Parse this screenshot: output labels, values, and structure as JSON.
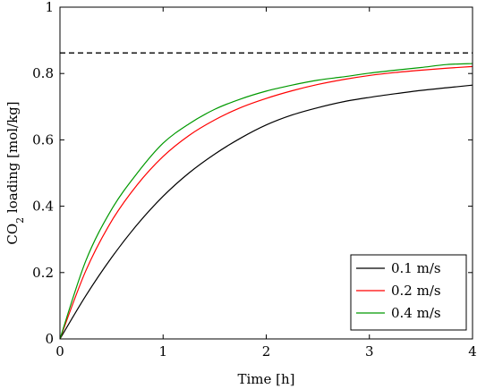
{
  "chart_data": {
    "type": "line",
    "xlabel": "Time [h]",
    "ylabel_main": "CO",
    "ylabel_sub": "2",
    "ylabel_rest": " loading [mol/kg]",
    "xlim": [
      0,
      4
    ],
    "ylim": [
      0,
      1
    ],
    "xticks": [
      0,
      1,
      2,
      3,
      4
    ],
    "xtick_labels": [
      "0",
      "1",
      "2",
      "3",
      "4"
    ],
    "yticks": [
      0,
      0.2,
      0.4,
      0.6,
      0.8,
      1
    ],
    "ytick_labels": [
      "0",
      "0.2",
      "0.4",
      "0.6",
      "0.8",
      "1"
    ],
    "grid": false,
    "legend_position": "bottom-right",
    "reference_line": {
      "y": 0.862,
      "style": "dashed",
      "color": "#000000"
    },
    "series": [
      {
        "name": "0.1 m/s",
        "color": "#000000",
        "x": [
          0,
          0.25,
          0.5,
          0.75,
          1.0,
          1.25,
          1.5,
          1.75,
          2.0,
          2.25,
          2.5,
          2.75,
          3.0,
          3.25,
          3.5,
          3.75,
          4.0
        ],
        "y": [
          0,
          0.13,
          0.245,
          0.345,
          0.43,
          0.5,
          0.557,
          0.605,
          0.645,
          0.675,
          0.697,
          0.715,
          0.728,
          0.739,
          0.749,
          0.757,
          0.765
        ]
      },
      {
        "name": "0.2 m/s",
        "color": "#ff0000",
        "x": [
          0,
          0.25,
          0.5,
          0.75,
          1.0,
          1.25,
          1.5,
          1.75,
          2.0,
          2.25,
          2.5,
          2.75,
          3.0,
          3.25,
          3.5,
          3.75,
          4.0
        ],
        "y": [
          0,
          0.205,
          0.355,
          0.465,
          0.55,
          0.613,
          0.66,
          0.697,
          0.725,
          0.748,
          0.767,
          0.782,
          0.794,
          0.803,
          0.81,
          0.816,
          0.821
        ]
      },
      {
        "name": "0.4 m/s",
        "color": "#009900",
        "x": [
          0,
          0.25,
          0.5,
          0.75,
          1.0,
          1.25,
          1.5,
          1.75,
          2.0,
          2.25,
          2.5,
          2.75,
          3.0,
          3.25,
          3.5,
          3.75,
          4.0
        ],
        "y": [
          0,
          0.235,
          0.39,
          0.5,
          0.59,
          0.648,
          0.692,
          0.723,
          0.747,
          0.765,
          0.78,
          0.79,
          0.801,
          0.81,
          0.818,
          0.827,
          0.83
        ]
      }
    ]
  }
}
